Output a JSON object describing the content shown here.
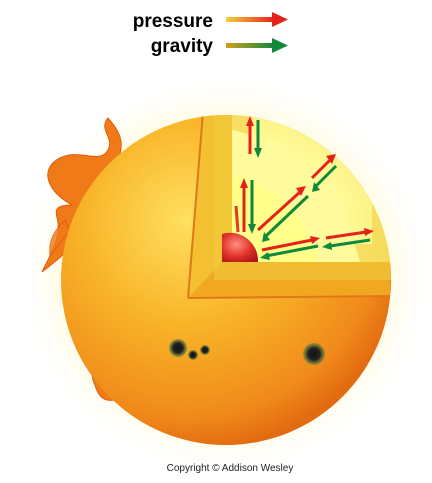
{
  "legend": {
    "pressure": {
      "label": "pressure",
      "arrow_colors": [
        "#f4c030",
        "#e8201a"
      ]
    },
    "gravity": {
      "label": "gravity",
      "arrow_colors": [
        "#c8a020",
        "#0f8a3a"
      ]
    }
  },
  "copyright": "Copyright © Addison Wesley",
  "colors": {
    "corona_glow": "#fff2a0",
    "sun_surface": "#f6a020",
    "sun_highlight": "#ffd84a",
    "sun_edge": "#e86a10",
    "interior": "#fff6a0",
    "core": "#e0302a",
    "sunspot": "#1a1a1a"
  },
  "icons": {
    "pressure_arrow": "arrow-right-icon",
    "gravity_arrow": "arrow-right-icon"
  }
}
